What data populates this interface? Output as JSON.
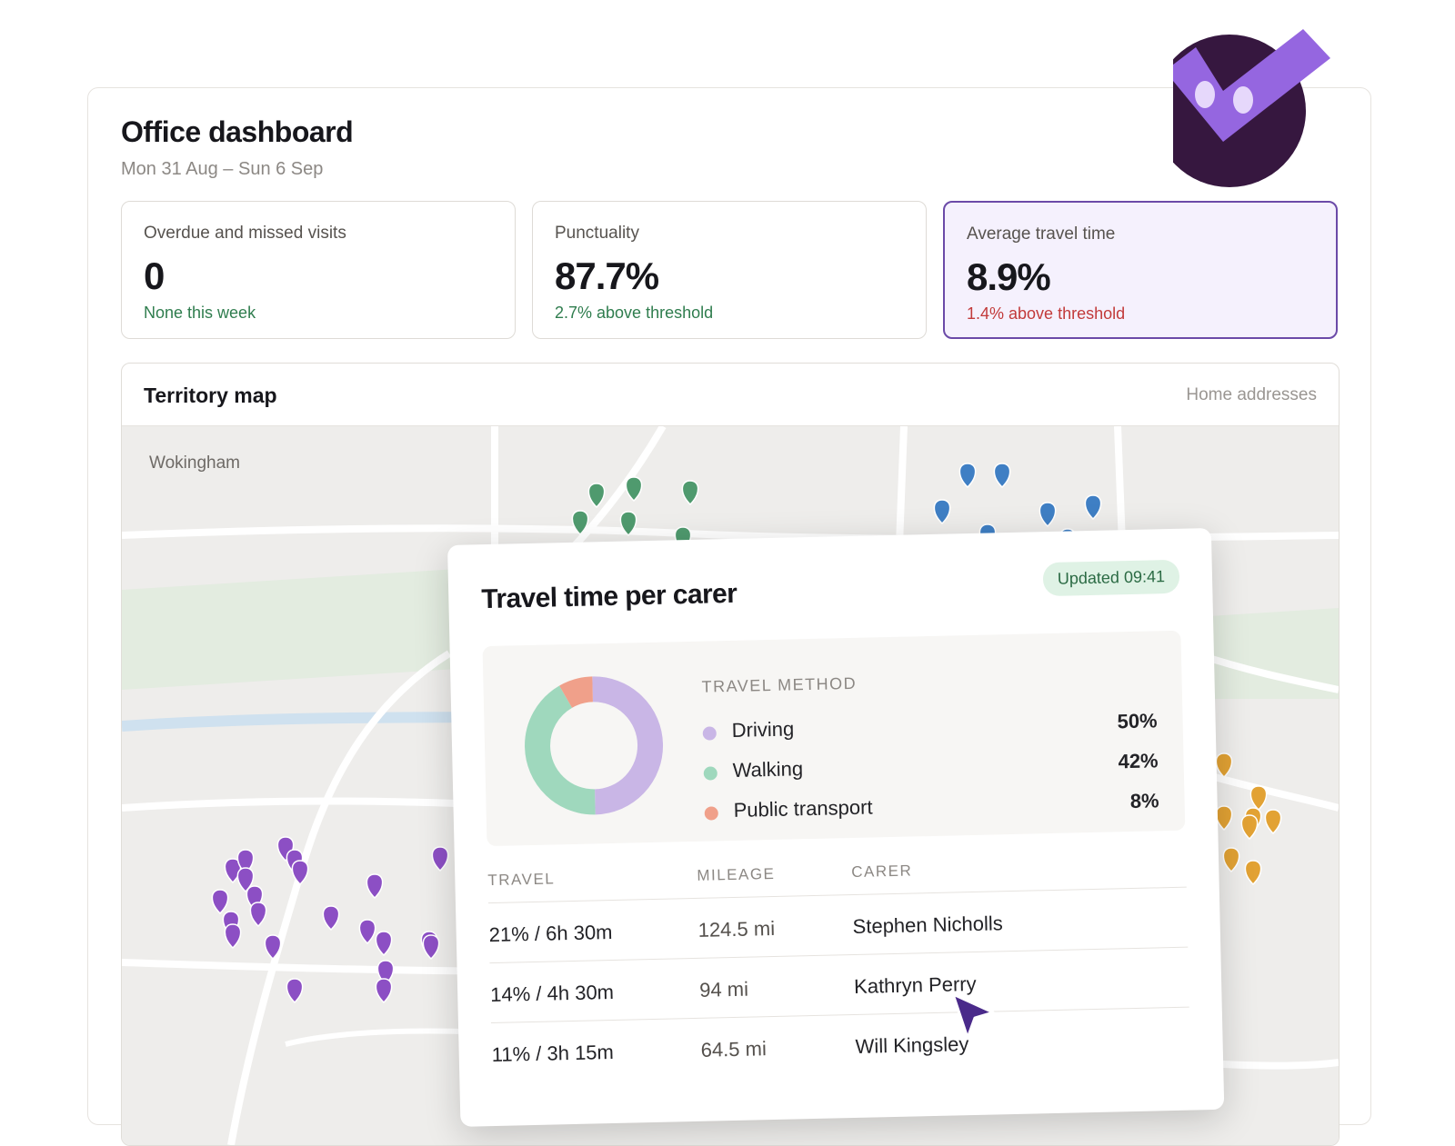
{
  "dashboard": {
    "title": "Office dashboard",
    "date_range": "Mon 31 Aug – Sun 6 Sep"
  },
  "cards": [
    {
      "label": "Overdue and missed visits",
      "value": "0",
      "note": "None this week",
      "note_status": "good"
    },
    {
      "label": "Punctuality",
      "value": "87.7%",
      "note": "2.7% above threshold",
      "note_status": "good"
    },
    {
      "label": "Average travel time",
      "value": "8.9%",
      "note": "1.4% above threshold",
      "note_status": "bad",
      "selected": true
    }
  ],
  "map": {
    "title": "Territory map",
    "filter_label": "Home addresses",
    "place_label": "Wokingham",
    "pin_groups": [
      {
        "color": "#4f9a6e"
      },
      {
        "color": "#3f7fc4"
      },
      {
        "color": "#8c4fc4"
      },
      {
        "color": "#e2a234"
      }
    ]
  },
  "popup": {
    "title": "Travel time per carer",
    "updated_badge": "Updated 09:41",
    "methods_heading": "TRAVEL METHOD",
    "methods": [
      {
        "label": "Driving",
        "percent": "50%",
        "value": 50,
        "color": "#c9b6e6"
      },
      {
        "label": "Walking",
        "percent": "42%",
        "value": 42,
        "color": "#9fd8bd"
      },
      {
        "label": "Public transport",
        "percent": "8%",
        "value": 8,
        "color": "#f0a08a"
      }
    ],
    "table": {
      "headers": [
        "TRAVEL",
        "MILEAGE",
        "CARER"
      ],
      "rows": [
        {
          "travel": "21% / 6h 30m",
          "mileage": "124.5 mi",
          "carer": "Stephen Nicholls"
        },
        {
          "travel": "14% / 4h 30m",
          "mileage": "94 mi",
          "carer": "Kathryn Perry"
        },
        {
          "travel": "11% / 3h 15m",
          "mileage": "64.5 mi",
          "carer": "Will Kingsley"
        }
      ]
    }
  },
  "colors": {
    "accent": "#6b4aa8",
    "logo_dark": "#36173f",
    "logo_check": "#9566e0",
    "good": "#2f7d4e",
    "bad": "#c23a3a"
  },
  "icons": [
    "app-logo-icon",
    "map-pin-icon",
    "cursor-pointer-icon"
  ]
}
